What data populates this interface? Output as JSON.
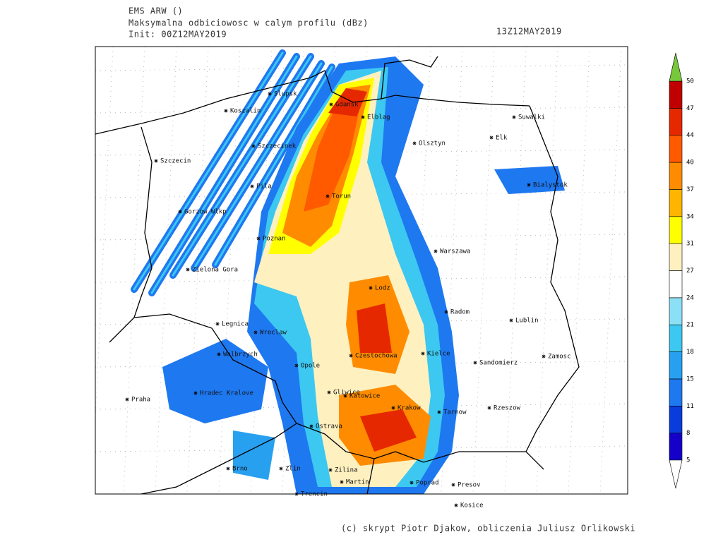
{
  "header": {
    "model": "EMS ARW ()",
    "field": "Maksymalna odbiciowosc w calym profilu (dBz)",
    "init": "Init: 00Z12MAY2019",
    "valid": "13Z12MAY2019"
  },
  "cities": [
    "Slupsk",
    "Koszalin",
    "Gdansk",
    "Elblag",
    "Suwalki",
    "Elk",
    "Olsztyn",
    "Szczecinek",
    "Szczecin",
    "Bialystok",
    "Pila",
    "Torun",
    "Gorzow Wlkp",
    "Poznan",
    "Warszawa",
    "Zielona Gora",
    "Lodz",
    "Radom",
    "Lublin",
    "Legnica",
    "Wroclaw",
    "Walbrzych",
    "Czestochowa",
    "Kielce",
    "Sandomierz",
    "Zamosc",
    "Opole",
    "Hradec Kralove",
    "Gliwice",
    "Katowice",
    "Praha",
    "Krakow",
    "Tarnow",
    "Rzeszow",
    "Ostrava",
    "Brno",
    "Zlin",
    "Zilina",
    "Martin",
    "Poprad",
    "Presov",
    "Trencin",
    "Kosice"
  ],
  "colorbar": {
    "levels": [
      5,
      8,
      11,
      15,
      18,
      21,
      24,
      27,
      31,
      34,
      37,
      40,
      44,
      47,
      50
    ],
    "colors": [
      "#1400c8",
      "#0a3cdc",
      "#1e78f0",
      "#28a0f0",
      "#3cc8f0",
      "#8ce0f5",
      "#ffffff",
      "#fff0c0",
      "#ffff00",
      "#ffb400",
      "#ff8c00",
      "#ff5a00",
      "#e62800",
      "#c00000"
    ],
    "over_color": "#78c83c",
    "under_color": "#ffffff"
  },
  "footer": "(c) skrypt Piotr Djakow, obliczenia Juliusz Orlikowski"
}
